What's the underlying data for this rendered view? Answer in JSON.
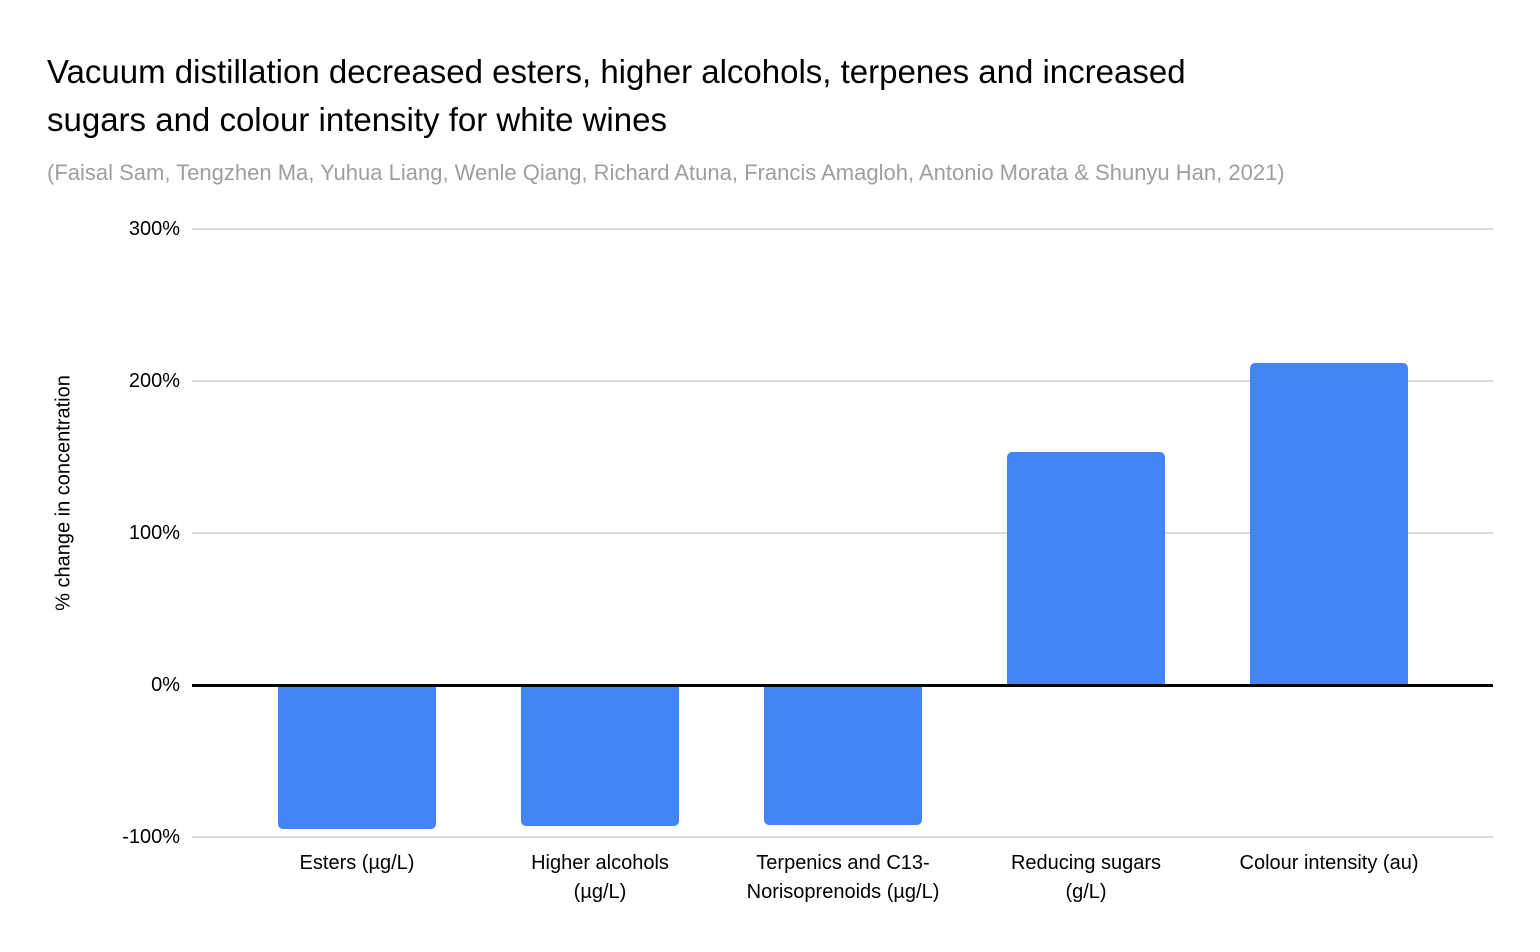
{
  "header": {
    "title": "Vacuum distillation decreased esters, higher alcohols, terpenes and increased sugars and colour intensity for white wines",
    "title_lines": [
      "Vacuum distillation decreased esters, higher alcohols, terpenes and increased",
      "sugars and colour intensity for white wines"
    ],
    "subtitle": "(Faisal Sam, Tengzhen Ma, Yuhua Liang, Wenle Qiang, Richard Atuna, Francis Amagloh, Antonio Morata & Shunyu Han, 2021)"
  },
  "chart_data": {
    "type": "bar",
    "title": "Vacuum distillation decreased esters, higher alcohols, terpenes and increased sugars and colour intensity for white wines",
    "subtitle": "(Faisal Sam, Tengzhen Ma, Yuhua Liang, Wenle Qiang, Richard Atuna, Francis Amagloh, Antonio Morata & Shunyu Han, 2021)",
    "categories": [
      "Esters (µg/L)",
      "Higher alcohols (µg/L)",
      "Terpenics and C13-Norisoprenoids (µg/L)",
      "Reducing sugars (g/L)",
      "Colour intensity (au)"
    ],
    "category_label_lines": [
      [
        "Esters (µg/L)"
      ],
      [
        "Higher alcohols",
        "(µg/L)"
      ],
      [
        "Terpenics and C13-",
        "Norisoprenoids (µg/L)"
      ],
      [
        "Reducing sugars",
        "(g/L)"
      ],
      [
        "Colour intensity (au)"
      ]
    ],
    "values": [
      -95,
      -93,
      -92,
      153,
      212
    ],
    "xlabel": "",
    "ylabel": "% change in concentration",
    "ylim": [
      -100,
      300
    ],
    "yticks": [
      300,
      200,
      100,
      0,
      -100
    ],
    "ytick_labels": [
      "300%",
      "200%",
      "100%",
      "0%",
      "-100%"
    ],
    "legend": "none",
    "grid": true,
    "colors": {
      "bar": "#4285f4",
      "gridline": "#d9d9d9",
      "zero_line": "#000000",
      "title": "#000000",
      "subtitle": "#9e9e9e",
      "axis_text": "#000000"
    }
  }
}
